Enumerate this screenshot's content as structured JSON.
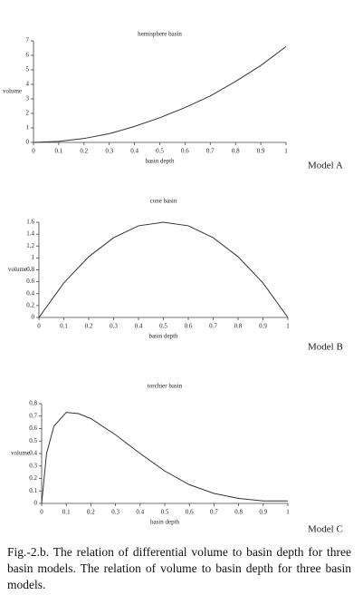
{
  "chart_data": [
    {
      "type": "line",
      "title": "hemisphere basin",
      "x_label": "basin depth",
      "y_label": "volume",
      "label": "Model A",
      "x": [
        0,
        0.1,
        0.2,
        0.3,
        0.4,
        0.5,
        0.6,
        0.7,
        0.8,
        0.9,
        1
      ],
      "values": [
        0,
        0.07,
        0.27,
        0.6,
        1.1,
        1.7,
        2.4,
        3.2,
        4.2,
        5.3,
        6.6
      ],
      "color": "#333333",
      "xlim": [
        0,
        1
      ],
      "ylim": [
        0,
        7
      ],
      "xticks": [
        0,
        0.1,
        0.2,
        0.3,
        0.4,
        0.5,
        0.6,
        0.7,
        0.8,
        0.9,
        1
      ],
      "yticks": [
        0,
        1,
        2,
        3,
        4,
        5,
        6,
        7
      ]
    },
    {
      "type": "line",
      "title": "cone basin",
      "x_label": "basin depth",
      "y_label": "volume",
      "label": "Model B",
      "x": [
        0,
        0.1,
        0.2,
        0.3,
        0.4,
        0.5,
        0.6,
        0.7,
        0.8,
        0.9,
        1
      ],
      "values": [
        0,
        0.58,
        1.02,
        1.34,
        1.54,
        1.6,
        1.54,
        1.34,
        1.02,
        0.58,
        0
      ],
      "color": "#333333",
      "xlim": [
        0,
        1
      ],
      "ylim": [
        0,
        1.6
      ],
      "xticks": [
        0,
        0.1,
        0.2,
        0.3,
        0.4,
        0.5,
        0.6,
        0.7,
        0.8,
        0.9,
        1
      ],
      "yticks": [
        0,
        0.2,
        0.4,
        0.6,
        0.8,
        1,
        1.2,
        1.4,
        1.6
      ]
    },
    {
      "type": "line",
      "title": "torchier basin",
      "x_label": "basin depth",
      "y_label": "volume",
      "label": "Model C",
      "x": [
        0,
        0.02,
        0.05,
        0.1,
        0.15,
        0.2,
        0.3,
        0.4,
        0.5,
        0.6,
        0.7,
        0.8,
        0.9,
        1
      ],
      "values": [
        0,
        0.4,
        0.62,
        0.73,
        0.72,
        0.68,
        0.55,
        0.4,
        0.26,
        0.15,
        0.08,
        0.04,
        0.02,
        0.02
      ],
      "color": "#333333",
      "xlim": [
        0,
        1
      ],
      "ylim": [
        0,
        0.8
      ],
      "xticks": [
        0,
        0.1,
        0.2,
        0.3,
        0.4,
        0.5,
        0.6,
        0.7,
        0.8,
        0.9,
        1
      ],
      "yticks": [
        0,
        0.1,
        0.2,
        0.3,
        0.4,
        0.5,
        0.6,
        0.7,
        0.8
      ]
    }
  ],
  "caption": "Fig.-2.b. The relation of differential volume to basin depth for three basin models. The relation of volume to basin depth for three basin models."
}
